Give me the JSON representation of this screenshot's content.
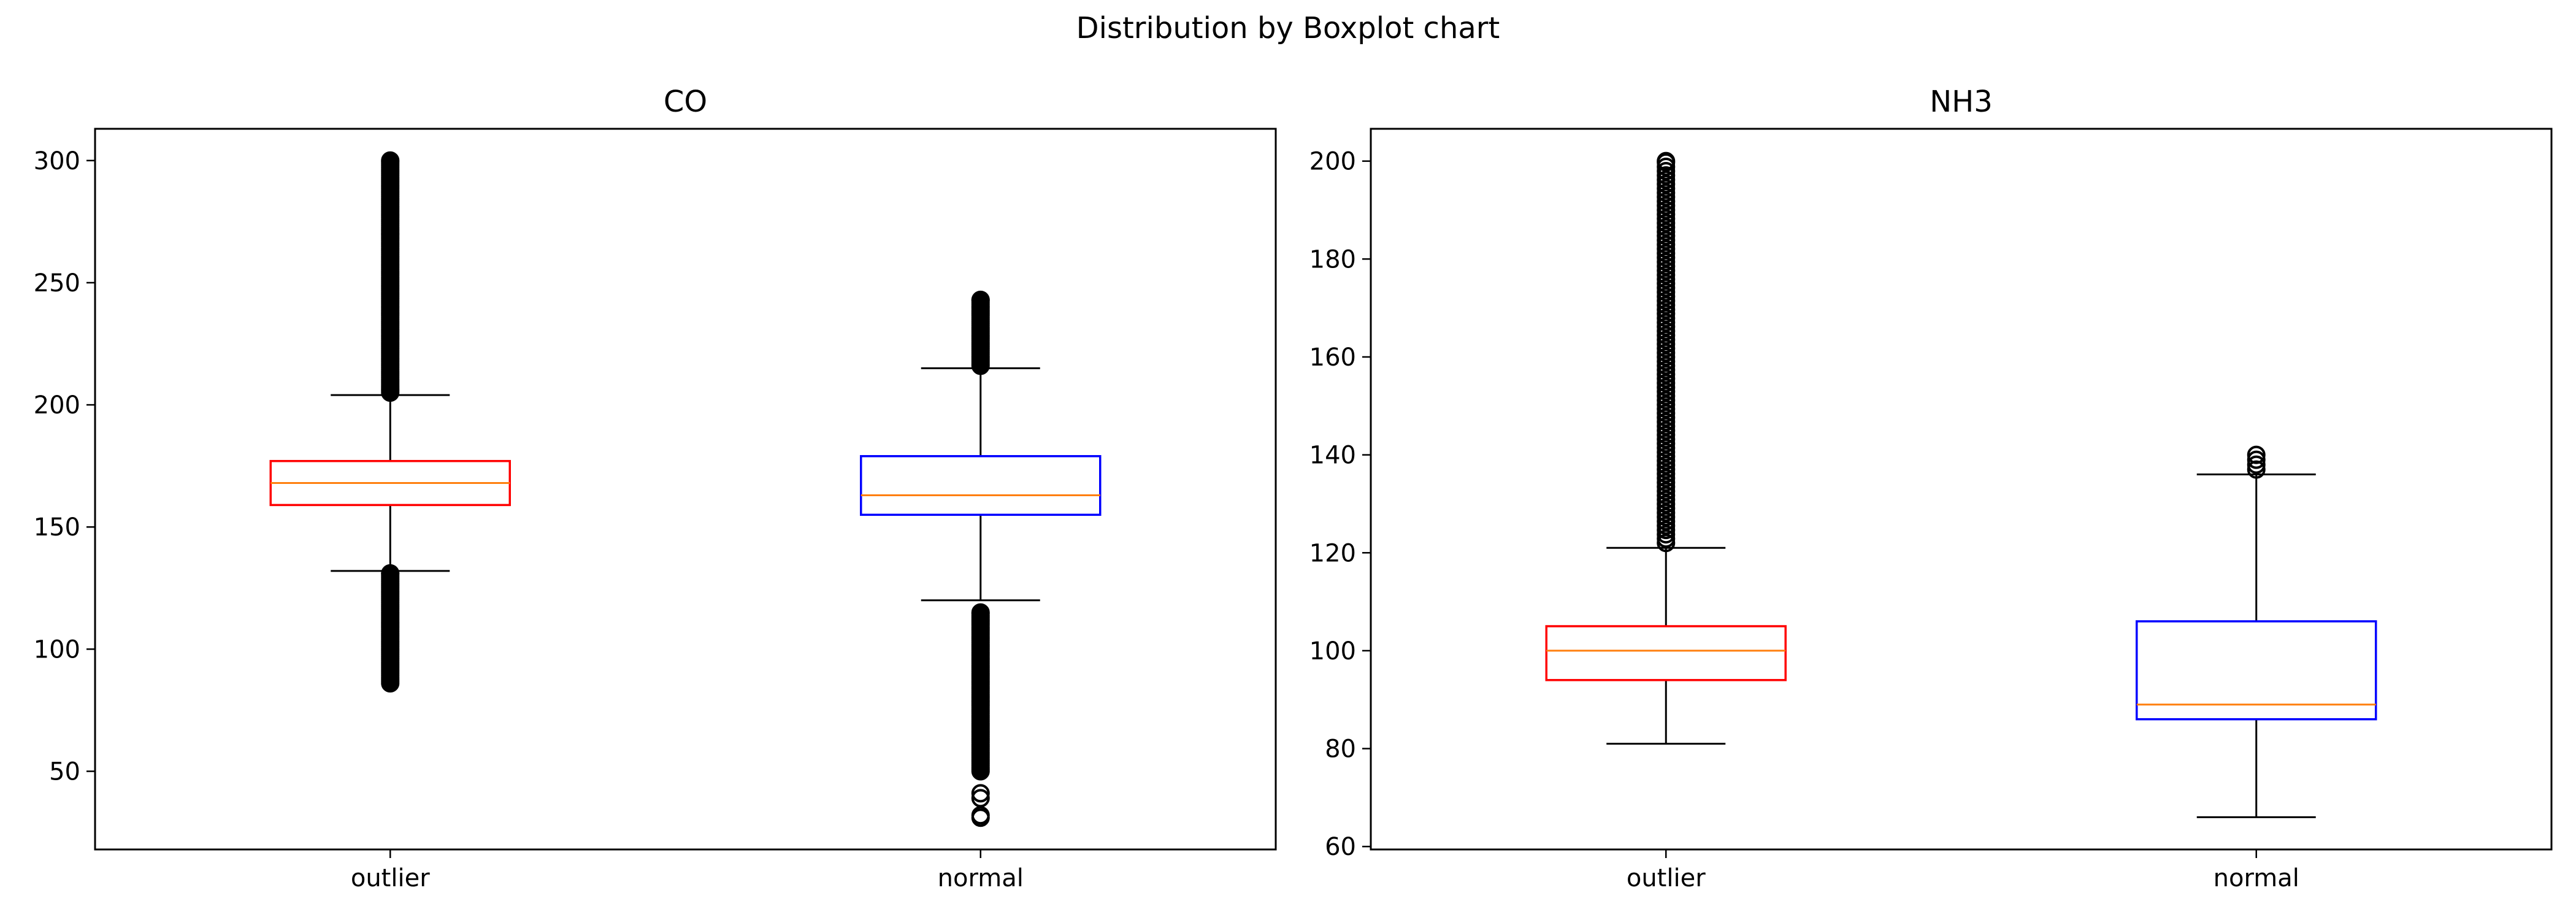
{
  "figure": {
    "suptitle": "Distribution by Boxplot chart"
  },
  "chart_data": [
    {
      "type": "boxplot",
      "title": "CO",
      "categories": [
        "outlier",
        "normal"
      ],
      "yticks": [
        50,
        100,
        150,
        200,
        250,
        300
      ],
      "ylim": [
        18,
        313
      ],
      "grid": false,
      "boxes": [
        {
          "label": "outlier",
          "box_color": "#ff0000",
          "whisker_low": 132,
          "q1": 159,
          "median": 168,
          "q3": 177,
          "whisker_high": 204,
          "outliers_high_range": [
            205,
            300
          ],
          "outliers_low_range": [
            86,
            131
          ],
          "outlier_dense": true
        },
        {
          "label": "normal",
          "box_color": "#0000ff",
          "whisker_low": 120,
          "q1": 155,
          "median": 163,
          "q3": 179,
          "whisker_high": 215,
          "outliers_high_range": [
            216,
            243
          ],
          "outliers_low_range": [
            50,
            115
          ],
          "outliers_low_extra": [
            41,
            39,
            32,
            31
          ],
          "outlier_dense": true
        }
      ],
      "median_color": "#ff7f0e"
    },
    {
      "type": "boxplot",
      "title": "NH3",
      "categories": [
        "outlier",
        "normal"
      ],
      "yticks": [
        60,
        80,
        100,
        120,
        140,
        160,
        180,
        200
      ],
      "ylim": [
        59.4,
        206.6
      ],
      "grid": false,
      "boxes": [
        {
          "label": "outlier",
          "box_color": "#ff0000",
          "whisker_low": 81,
          "q1": 94,
          "median": 100,
          "q3": 105,
          "whisker_high": 121,
          "outliers_high_range": [
            122,
            200
          ],
          "outlier_dense": false
        },
        {
          "label": "normal",
          "box_color": "#0000ff",
          "whisker_low": 66,
          "q1": 86,
          "median": 89,
          "q3": 106,
          "whisker_high": 136,
          "outliers_high_points": [
            137,
            138,
            139,
            140
          ],
          "outlier_dense": false
        }
      ],
      "median_color": "#ff7f0e"
    }
  ]
}
